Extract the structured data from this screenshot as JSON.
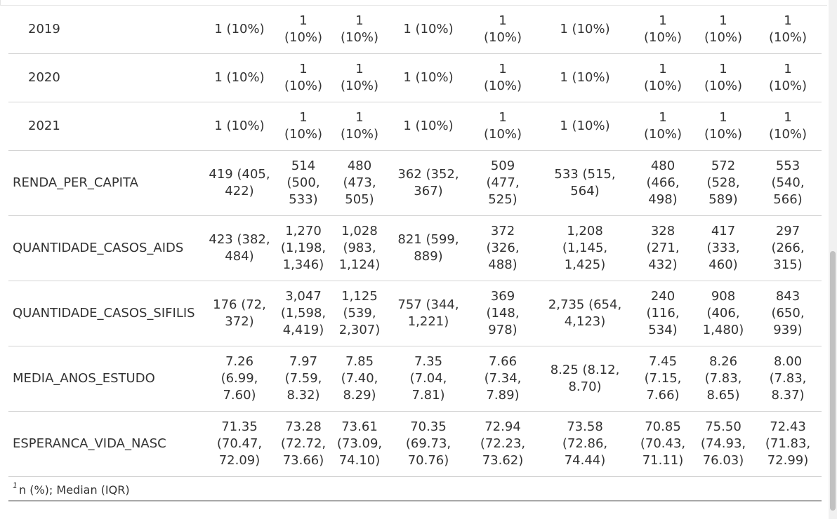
{
  "rows": [
    {
      "label": "2019",
      "kind": "sub",
      "values": [
        "1 (10%)",
        "1 (10%)",
        "1 (10%)",
        "1 (10%)",
        "1 (10%)",
        "1 (10%)",
        "1 (10%)",
        "1 (10%)",
        "1 (10%)"
      ]
    },
    {
      "label": "2020",
      "kind": "sub",
      "values": [
        "1 (10%)",
        "1 (10%)",
        "1 (10%)",
        "1 (10%)",
        "1 (10%)",
        "1 (10%)",
        "1 (10%)",
        "1 (10%)",
        "1 (10%)"
      ]
    },
    {
      "label": "2021",
      "kind": "sub",
      "values": [
        "1 (10%)",
        "1 (10%)",
        "1 (10%)",
        "1 (10%)",
        "1 (10%)",
        "1 (10%)",
        "1 (10%)",
        "1 (10%)",
        "1 (10%)"
      ]
    },
    {
      "label": "RENDA_PER_CAPITA",
      "kind": "var",
      "values": [
        "419 (405, 422)",
        "514 (500, 533)",
        "480 (473, 505)",
        "362 (352, 367)",
        "509 (477, 525)",
        "533 (515, 564)",
        "480 (466, 498)",
        "572 (528, 589)",
        "553 (540, 566)"
      ]
    },
    {
      "label": "QUANTIDADE_CASOS_AIDS",
      "kind": "var",
      "values": [
        "423 (382, 484)",
        "1,270 (1,198, 1,346)",
        "1,028 (983, 1,124)",
        "821 (599, 889)",
        "372 (326, 488)",
        "1,208 (1,145, 1,425)",
        "328 (271, 432)",
        "417 (333, 460)",
        "297 (266, 315)"
      ]
    },
    {
      "label": "QUANTIDADE_CASOS_SIFILIS",
      "kind": "var",
      "values": [
        "176 (72, 372)",
        "3,047 (1,598, 4,419)",
        "1,125 (539, 2,307)",
        "757 (344, 1,221)",
        "369 (148, 978)",
        "2,735 (654, 4,123)",
        "240 (116, 534)",
        "908 (406, 1,480)",
        "843 (650, 939)"
      ]
    },
    {
      "label": "MEDIA_ANOS_ESTUDO",
      "kind": "var",
      "values": [
        "7.26 (6.99, 7.60)",
        "7.97 (7.59, 8.32)",
        "7.85 (7.40, 8.29)",
        "7.35 (7.04, 7.81)",
        "7.66 (7.34, 7.89)",
        "8.25 (8.12, 8.70)",
        "7.45 (7.15, 7.66)",
        "8.26 (7.83, 8.65)",
        "8.00 (7.83, 8.37)"
      ]
    },
    {
      "label": "ESPERANCA_VIDA_NASC",
      "kind": "var",
      "values": [
        "71.35 (70.47, 72.09)",
        "73.28 (72.72, 73.66)",
        "73.61 (73.09, 74.10)",
        "70.35 (69.73, 70.76)",
        "72.94 (72.23, 73.62)",
        "73.58 (72.86, 74.44)",
        "70.85 (70.43, 71.11)",
        "75.50 (74.93, 76.03)",
        "72.43 (71.83, 72.99)"
      ]
    }
  ],
  "footnote": {
    "marker": "1",
    "text": "n (%); Median (IQR)"
  }
}
